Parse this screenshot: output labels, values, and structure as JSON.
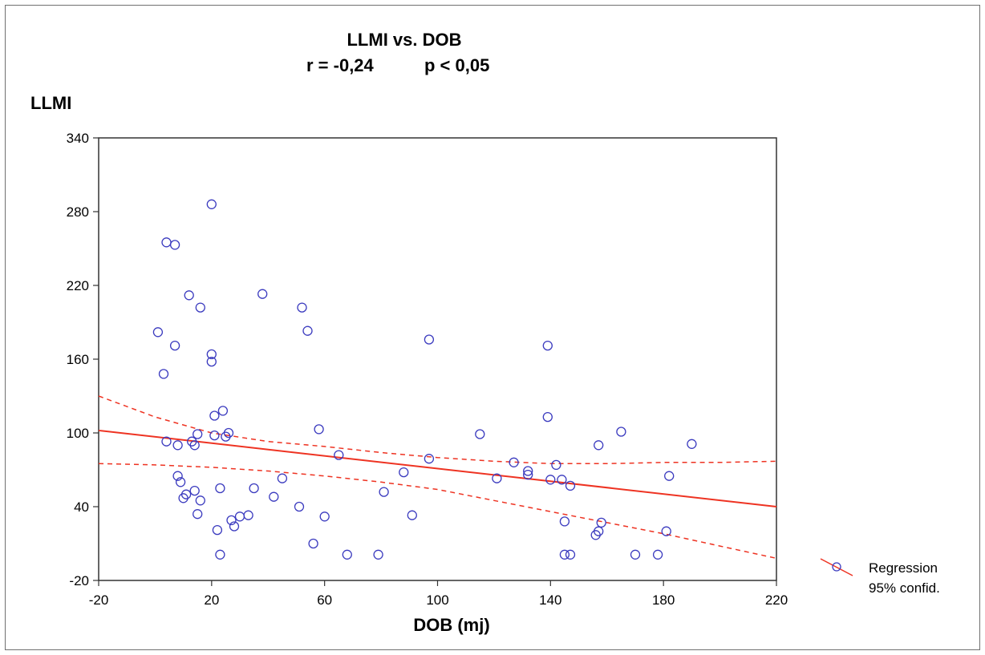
{
  "chart_data": {
    "type": "scatter",
    "title": "LLMI vs. DOB",
    "subtitle_r": "r = -0,24",
    "subtitle_p": "p < 0,05",
    "xlabel": "DOB (mj)",
    "ylabel": "LLMI",
    "xlim": [
      -20,
      220
    ],
    "ylim": [
      -20,
      340
    ],
    "xticks": [
      "-20",
      "20",
      "60",
      "100",
      "140",
      "180",
      "220"
    ],
    "yticks": [
      "-20",
      "40",
      "100",
      "160",
      "220",
      "280",
      "340"
    ],
    "legend_position": "bottom-right, outside plot",
    "legend": [
      "Regression",
      "95% confid."
    ],
    "colors": {
      "points": "#3b3bbf",
      "regression": "#ee3322",
      "confidence": "#ee3322"
    },
    "regression": {
      "x": [
        -20,
        220
      ],
      "y": [
        102,
        40
      ]
    },
    "conf_upper": {
      "x": [
        -20,
        0,
        20,
        40,
        60,
        80,
        100,
        120,
        140,
        160,
        180,
        200,
        220
      ],
      "y": [
        130,
        113,
        100,
        93,
        89,
        84,
        80,
        77,
        75,
        75,
        76,
        76,
        77
      ]
    },
    "conf_lower": {
      "x": [
        -20,
        0,
        20,
        40,
        60,
        80,
        100,
        120,
        140,
        160,
        180,
        200,
        220
      ],
      "y": [
        75,
        74,
        72,
        69,
        65,
        60,
        54,
        45,
        36,
        27,
        18,
        8,
        -2
      ]
    },
    "x": [
      1,
      3,
      4,
      7,
      8,
      8,
      9,
      11,
      12,
      13,
      14,
      15,
      15,
      16,
      16,
      20,
      20,
      21,
      22,
      23,
      23,
      24,
      25,
      26,
      27,
      28,
      30,
      33,
      35,
      38,
      42,
      45,
      51,
      52,
      54,
      56,
      58,
      60,
      65,
      68,
      79,
      81,
      88,
      91,
      97,
      97,
      115,
      121,
      127,
      132,
      132,
      139,
      139,
      140,
      142,
      144,
      145,
      145,
      147,
      147,
      156,
      157,
      157,
      158,
      165,
      170,
      178,
      181,
      182,
      190,
      4,
      7,
      21,
      14,
      20,
      10
    ],
    "y": [
      182,
      148,
      255,
      253,
      90,
      65,
      60,
      50,
      212,
      93,
      90,
      34,
      99,
      202,
      45,
      158,
      164,
      114,
      21,
      1,
      55,
      118,
      97,
      100,
      29,
      24,
      32,
      33,
      55,
      213,
      48,
      63,
      40,
      202,
      183,
      10,
      103,
      32,
      82,
      1,
      1,
      52,
      68,
      33,
      176,
      79,
      99,
      63,
      76,
      69,
      66,
      171,
      113,
      62,
      74,
      62,
      28,
      1,
      57,
      1,
      17,
      20,
      90,
      27,
      101,
      1,
      1,
      20,
      65,
      91,
      93,
      171,
      98,
      53,
      286,
      47
    ]
  }
}
